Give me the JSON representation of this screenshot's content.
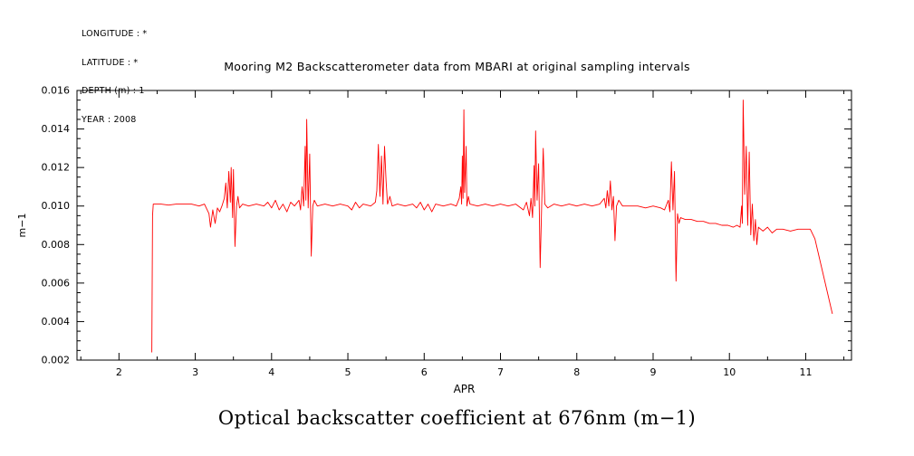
{
  "meta": {
    "lines": [
      "LONGITUDE : *",
      "LATITUDE : *",
      "DEPTH (m) : 1",
      "YEAR : 2008"
    ]
  },
  "caption": "Optical backscatter coefficient at 676nm (m−1)",
  "chart_data": {
    "type": "line",
    "title": "Mooring M2 Backscatterometer data from MBARI at original sampling intervals",
    "xlabel": "APR",
    "ylabel": "m−1",
    "xlim": [
      1.45,
      11.6
    ],
    "ylim": [
      0.002,
      0.016
    ],
    "xticks": [
      2,
      3,
      4,
      5,
      6,
      7,
      8,
      9,
      10,
      11
    ],
    "yticks": [
      0.002,
      0.004,
      0.006,
      0.008,
      0.01,
      0.012,
      0.014,
      0.016
    ],
    "grid": false,
    "legend": "none",
    "line_color": "#ff0000",
    "axis_color": "#000000",
    "points": [
      [
        2.43,
        0.0024
      ],
      [
        2.44,
        0.0095
      ],
      [
        2.45,
        0.0101
      ],
      [
        2.55,
        0.0101
      ],
      [
        2.65,
        0.01005
      ],
      [
        2.75,
        0.0101
      ],
      [
        2.85,
        0.0101
      ],
      [
        2.95,
        0.0101
      ],
      [
        3.05,
        0.01
      ],
      [
        3.12,
        0.0101
      ],
      [
        3.18,
        0.0096
      ],
      [
        3.2,
        0.0089
      ],
      [
        3.23,
        0.0098
      ],
      [
        3.26,
        0.0091
      ],
      [
        3.29,
        0.0099
      ],
      [
        3.32,
        0.0097
      ],
      [
        3.35,
        0.01
      ],
      [
        3.38,
        0.0104
      ],
      [
        3.4,
        0.0112
      ],
      [
        3.42,
        0.0099
      ],
      [
        3.44,
        0.0118
      ],
      [
        3.46,
        0.0102
      ],
      [
        3.47,
        0.012
      ],
      [
        3.49,
        0.0094
      ],
      [
        3.5,
        0.0119
      ],
      [
        3.52,
        0.0079
      ],
      [
        3.54,
        0.01
      ],
      [
        3.56,
        0.0105
      ],
      [
        3.58,
        0.0099
      ],
      [
        3.62,
        0.0101
      ],
      [
        3.7,
        0.01
      ],
      [
        3.8,
        0.0101
      ],
      [
        3.9,
        0.01
      ],
      [
        3.95,
        0.0102
      ],
      [
        4.0,
        0.0099
      ],
      [
        4.05,
        0.0103
      ],
      [
        4.1,
        0.0098
      ],
      [
        4.15,
        0.0101
      ],
      [
        4.2,
        0.0097
      ],
      [
        4.25,
        0.0102
      ],
      [
        4.3,
        0.01
      ],
      [
        4.36,
        0.0103
      ],
      [
        4.38,
        0.0098
      ],
      [
        4.4,
        0.011
      ],
      [
        4.42,
        0.01
      ],
      [
        4.44,
        0.0131
      ],
      [
        4.45,
        0.0103
      ],
      [
        4.46,
        0.0145
      ],
      [
        4.48,
        0.0099
      ],
      [
        4.5,
        0.0127
      ],
      [
        4.52,
        0.0074
      ],
      [
        4.54,
        0.01
      ],
      [
        4.56,
        0.0103
      ],
      [
        4.6,
        0.01
      ],
      [
        4.7,
        0.0101
      ],
      [
        4.8,
        0.01
      ],
      [
        4.9,
        0.0101
      ],
      [
        5.0,
        0.01
      ],
      [
        5.05,
        0.0098
      ],
      [
        5.1,
        0.0102
      ],
      [
        5.15,
        0.0099
      ],
      [
        5.2,
        0.0101
      ],
      [
        5.3,
        0.01
      ],
      [
        5.36,
        0.0102
      ],
      [
        5.38,
        0.0108
      ],
      [
        5.4,
        0.0132
      ],
      [
        5.42,
        0.0105
      ],
      [
        5.44,
        0.0126
      ],
      [
        5.46,
        0.0101
      ],
      [
        5.48,
        0.0131
      ],
      [
        5.5,
        0.0113
      ],
      [
        5.52,
        0.0101
      ],
      [
        5.55,
        0.0105
      ],
      [
        5.58,
        0.01
      ],
      [
        5.65,
        0.0101
      ],
      [
        5.75,
        0.01
      ],
      [
        5.85,
        0.0101
      ],
      [
        5.9,
        0.0099
      ],
      [
        5.95,
        0.0102
      ],
      [
        6.0,
        0.0098
      ],
      [
        6.05,
        0.0101
      ],
      [
        6.1,
        0.0097
      ],
      [
        6.15,
        0.0101
      ],
      [
        6.25,
        0.01
      ],
      [
        6.35,
        0.0101
      ],
      [
        6.42,
        0.01
      ],
      [
        6.46,
        0.0104
      ],
      [
        6.48,
        0.011
      ],
      [
        6.49,
        0.0101
      ],
      [
        6.5,
        0.0126
      ],
      [
        6.51,
        0.0104
      ],
      [
        6.52,
        0.015
      ],
      [
        6.53,
        0.0107
      ],
      [
        6.55,
        0.0131
      ],
      [
        6.56,
        0.01
      ],
      [
        6.58,
        0.0105
      ],
      [
        6.6,
        0.0101
      ],
      [
        6.7,
        0.01
      ],
      [
        6.8,
        0.0101
      ],
      [
        6.9,
        0.01
      ],
      [
        7.0,
        0.0101
      ],
      [
        7.1,
        0.01
      ],
      [
        7.2,
        0.0101
      ],
      [
        7.3,
        0.0098
      ],
      [
        7.34,
        0.0102
      ],
      [
        7.38,
        0.0095
      ],
      [
        7.4,
        0.0104
      ],
      [
        7.42,
        0.0094
      ],
      [
        7.44,
        0.0121
      ],
      [
        7.45,
        0.01
      ],
      [
        7.46,
        0.0139
      ],
      [
        7.48,
        0.0103
      ],
      [
        7.5,
        0.0122
      ],
      [
        7.52,
        0.0068
      ],
      [
        7.54,
        0.0101
      ],
      [
        7.56,
        0.013
      ],
      [
        7.58,
        0.0101
      ],
      [
        7.62,
        0.0099
      ],
      [
        7.7,
        0.0101
      ],
      [
        7.8,
        0.01
      ],
      [
        7.9,
        0.0101
      ],
      [
        8.0,
        0.01
      ],
      [
        8.1,
        0.0101
      ],
      [
        8.2,
        0.01
      ],
      [
        8.3,
        0.0101
      ],
      [
        8.36,
        0.0104
      ],
      [
        8.38,
        0.0099
      ],
      [
        8.4,
        0.0108
      ],
      [
        8.42,
        0.01
      ],
      [
        8.44,
        0.0113
      ],
      [
        8.46,
        0.0098
      ],
      [
        8.48,
        0.0105
      ],
      [
        8.5,
        0.0082
      ],
      [
        8.52,
        0.01
      ],
      [
        8.55,
        0.0103
      ],
      [
        8.6,
        0.01
      ],
      [
        8.7,
        0.01
      ],
      [
        8.8,
        0.01
      ],
      [
        8.9,
        0.0099
      ],
      [
        9.0,
        0.01
      ],
      [
        9.1,
        0.0099
      ],
      [
        9.15,
        0.0098
      ],
      [
        9.2,
        0.0103
      ],
      [
        9.22,
        0.0097
      ],
      [
        9.24,
        0.0123
      ],
      [
        9.26,
        0.0098
      ],
      [
        9.28,
        0.0118
      ],
      [
        9.3,
        0.0061
      ],
      [
        9.32,
        0.0096
      ],
      [
        9.34,
        0.0091
      ],
      [
        9.36,
        0.0094
      ],
      [
        9.42,
        0.0093
      ],
      [
        9.5,
        0.0093
      ],
      [
        9.58,
        0.0092
      ],
      [
        9.66,
        0.0092
      ],
      [
        9.74,
        0.0091
      ],
      [
        9.82,
        0.0091
      ],
      [
        9.9,
        0.009
      ],
      [
        9.98,
        0.009
      ],
      [
        10.05,
        0.0089
      ],
      [
        10.1,
        0.009
      ],
      [
        10.14,
        0.0089
      ],
      [
        10.16,
        0.01
      ],
      [
        10.17,
        0.0091
      ],
      [
        10.18,
        0.0155
      ],
      [
        10.2,
        0.0106
      ],
      [
        10.22,
        0.0131
      ],
      [
        10.24,
        0.009
      ],
      [
        10.26,
        0.0128
      ],
      [
        10.28,
        0.0085
      ],
      [
        10.3,
        0.0101
      ],
      [
        10.32,
        0.0082
      ],
      [
        10.34,
        0.0093
      ],
      [
        10.36,
        0.008
      ],
      [
        10.38,
        0.0089
      ],
      [
        10.44,
        0.0087
      ],
      [
        10.5,
        0.0089
      ],
      [
        10.56,
        0.0086
      ],
      [
        10.62,
        0.0088
      ],
      [
        10.7,
        0.0088
      ],
      [
        10.8,
        0.0087
      ],
      [
        10.9,
        0.0088
      ],
      [
        11.0,
        0.0088
      ],
      [
        11.06,
        0.0088
      ],
      [
        11.12,
        0.0083
      ],
      [
        11.35,
        0.0044
      ]
    ]
  }
}
